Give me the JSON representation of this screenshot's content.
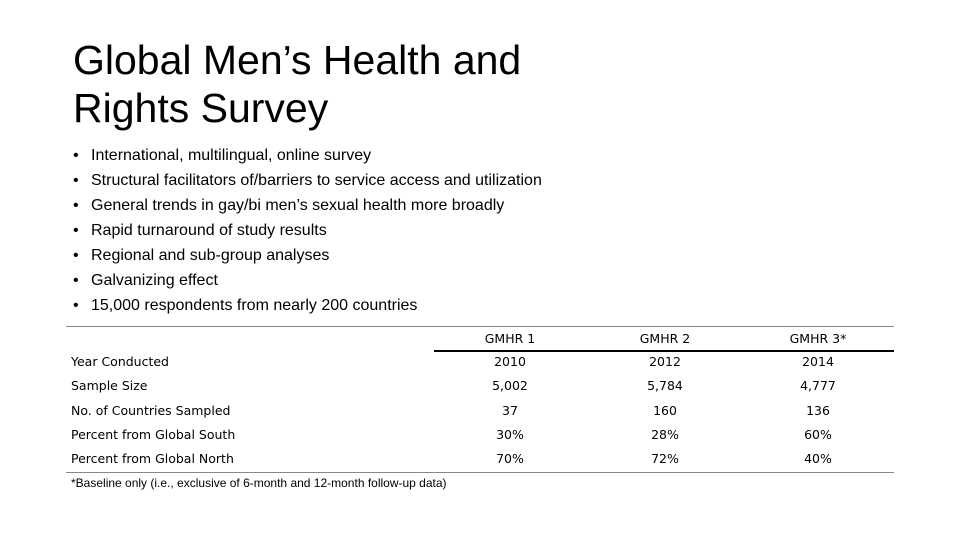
{
  "title_line1": "Global Men’s Health and",
  "title_line2": "Rights Survey",
  "bullet_char": "•",
  "bullets": [
    "International, multilingual, online survey",
    "Structural facilitators of/barriers to service access and utilization",
    "General trends in gay/bi men’s sexual health more broadly",
    "Rapid turnaround of study results",
    "Regional and sub-group analyses",
    "Galvanizing effect",
    "15,000 respondents from nearly 200 countries"
  ],
  "table": {
    "headers": [
      "GMHR 1",
      "GMHR 2",
      "GMHR 3*"
    ],
    "rows": [
      {
        "label": "Year Conducted",
        "values": [
          "2010",
          "2012",
          "2014"
        ]
      },
      {
        "label": "Sample Size",
        "values": [
          "5,002",
          "5,784",
          "4,777"
        ]
      },
      {
        "label": "No. of Countries Sampled",
        "values": [
          "37",
          "160",
          "136"
        ]
      },
      {
        "label": "Percent from Global South",
        "values": [
          "30%",
          "28%",
          "60%"
        ]
      },
      {
        "label": "Percent from Global North",
        "values": [
          "70%",
          "72%",
          "40%"
        ]
      }
    ]
  },
  "footnote": "*Baseline only (i.e., exclusive of 6-month and 12-month follow-up data)"
}
